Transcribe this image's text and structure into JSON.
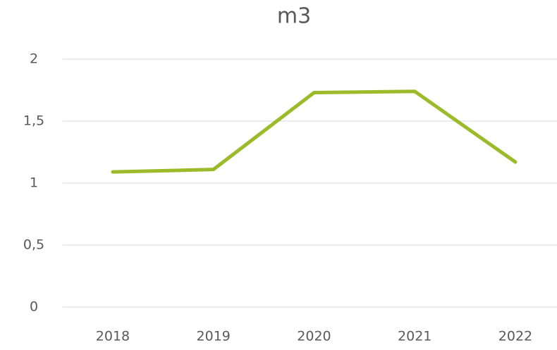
{
  "chart_data": {
    "type": "line",
    "title": "m3",
    "categories": [
      "2018",
      "2019",
      "2020",
      "2021",
      "2022"
    ],
    "values": [
      1.09,
      1.11,
      1.73,
      1.74,
      1.17
    ],
    "color": "#9bbb2a",
    "ylim": [
      0,
      2
    ],
    "yticks": [
      0,
      {
        "value": 0.5,
        "label": "0,5"
      },
      1,
      {
        "value": 1.5,
        "label": "1,5"
      },
      2
    ],
    "grid": true
  }
}
